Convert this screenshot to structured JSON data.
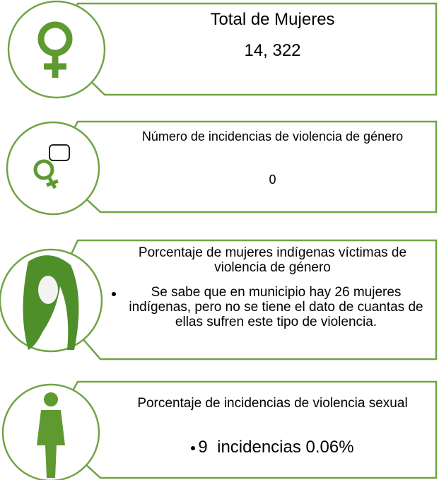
{
  "panels": [
    {
      "title": "Total de Mujeres",
      "value": "14, 322"
    },
    {
      "title": "Número de incidencias de violencia de género",
      "value": "0"
    },
    {
      "title": "Porcentaje de mujeres indígenas víctimas de violencia de género",
      "bullet": "Se sabe que en municipio hay 26 mujeres indígenas, pero no se tiene el dato de cuantas de ellas sufren este tipo de violencia."
    },
    {
      "title": "Porcentaje de incidencias de violencia sexual",
      "bullet": "9  incidencias 0.06%"
    }
  ]
}
